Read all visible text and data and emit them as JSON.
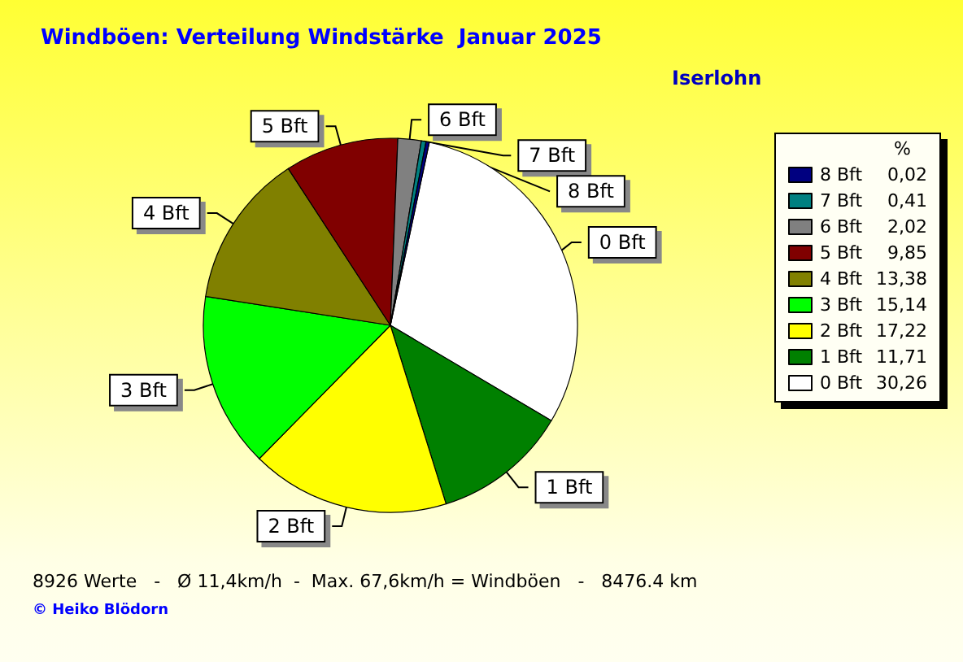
{
  "chart_data": {
    "type": "pie",
    "title": "Windböen: Verteilung Windstärke  Januar 2025",
    "subtitle": "Iserlohn",
    "legend_title": "%",
    "legend": "right",
    "categories": [
      "0 Bft",
      "1 Bft",
      "2 Bft",
      "3 Bft",
      "4 Bft",
      "5 Bft",
      "6 Bft",
      "7 Bft",
      "8 Bft"
    ],
    "values": [
      30.26,
      11.71,
      17.22,
      15.14,
      13.38,
      9.85,
      2.02,
      0.41,
      0.02
    ],
    "value_labels": [
      "30,26",
      "11,71",
      "17,22",
      "15,14",
      "13,38",
      "9,85",
      "2,02",
      "0,41",
      "0,02"
    ],
    "colors": [
      "#ffffff",
      "#008000",
      "#ffff00",
      "#00ff00",
      "#808000",
      "#800000",
      "#808080",
      "#008080",
      "#000080"
    ],
    "annotations": [
      "8926 Werte   -   Ø 11,4km/h  -  Max. 67,6km/h = Windböen   -   8476.4 km",
      "© Heiko Blödorn"
    ]
  }
}
